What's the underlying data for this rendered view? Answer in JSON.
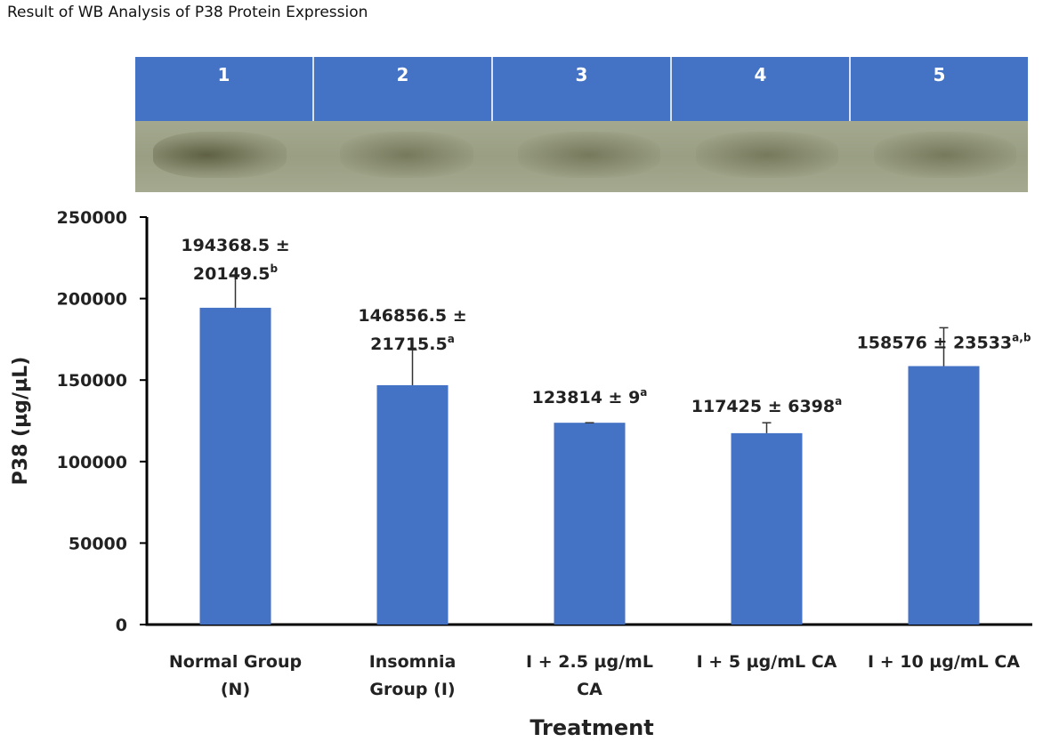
{
  "page_title": "Result of WB Analysis of P38 Protein Expression",
  "lanes": [
    "1",
    "2",
    "3",
    "4",
    "5"
  ],
  "colors": {
    "bar": "#4472c4",
    "lane_header": "#4472c4",
    "axis": "#000000"
  },
  "chart_data": {
    "type": "bar",
    "title": "",
    "xlabel": "Treatment",
    "ylabel": "P38 (µg/µL)",
    "ylim": [
      0,
      250000
    ],
    "yticks": [
      0,
      50000,
      100000,
      150000,
      200000,
      250000
    ],
    "categories": [
      [
        "Normal Group",
        "(N)"
      ],
      [
        "Insomnia",
        "Group (I)"
      ],
      [
        "I + 2.5 µg/mL",
        "CA"
      ],
      [
        "I + 5 µg/mL CA"
      ],
      [
        "I + 10 µg/mL CA"
      ]
    ],
    "values": [
      194368.5,
      146856.5,
      123814,
      117425,
      158576
    ],
    "errors": [
      20149.5,
      21715.5,
      9,
      6398,
      23533
    ],
    "data_labels": [
      [
        {
          "t": "194368.5 ±"
        },
        {
          "t": "20149.5",
          "sup": "b"
        }
      ],
      [
        {
          "t": "146856.5 ±"
        },
        {
          "t": "21715.5",
          "sup": "a"
        }
      ],
      [
        {
          "t": "123814 ± 9",
          "sup": "a"
        }
      ],
      [
        {
          "t": "117425 ± 6398",
          "sup": "a"
        }
      ],
      [
        {
          "t": "158576 ± 23533",
          "sup": "a,b"
        }
      ]
    ],
    "grid": false,
    "legend": "none"
  }
}
